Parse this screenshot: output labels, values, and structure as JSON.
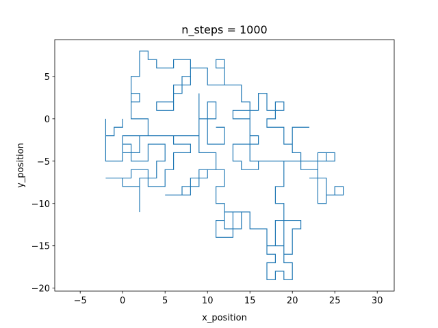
{
  "chart_data": {
    "type": "line",
    "title": "n_steps = 1000",
    "xlabel": "x_position",
    "ylabel": "y_position",
    "color": "#1f77b4",
    "xlim": [
      -8,
      32
    ],
    "ylim": [
      -20.35,
      9.35
    ],
    "xticks": [
      {
        "value": -5,
        "label": "−5"
      },
      0,
      5,
      10,
      15,
      20,
      25,
      30
    ],
    "yticks": [
      {
        "value": -20,
        "label": "−20"
      },
      {
        "value": -15,
        "label": "−15"
      },
      {
        "value": -10,
        "label": "−10"
      },
      {
        "value": -5,
        "label": "−5"
      },
      0,
      5
    ],
    "x": [
      0,
      0,
      -1,
      -1,
      -2,
      -2,
      -2,
      0,
      0,
      1,
      1,
      3,
      3,
      5,
      5,
      4,
      4,
      2,
      2,
      2,
      0,
      0,
      -2,
      1,
      1,
      3,
      3,
      5,
      5,
      6,
      6,
      8,
      8,
      6,
      6,
      9,
      9,
      11,
      11,
      9,
      9,
      7,
      7,
      5,
      8,
      8,
      10,
      10,
      12,
      12,
      11,
      11,
      12,
      12,
      11,
      11,
      13,
      13,
      14,
      14,
      12,
      12,
      15,
      15,
      17,
      17,
      18,
      18,
      21,
      21,
      20,
      20,
      19,
      19,
      17,
      17,
      18,
      18,
      17,
      17,
      18,
      18,
      19,
      19,
      20,
      20,
      19,
      19,
      18,
      18,
      19,
      19,
      16,
      16,
      14,
      14,
      13,
      13,
      16,
      16,
      15,
      15,
      13,
      13,
      16,
      16,
      17,
      17,
      19,
      19,
      18,
      18,
      17,
      17,
      19,
      19,
      20,
      20,
      22,
      20,
      20,
      21,
      21,
      23,
      23,
      22,
      24,
      24,
      25,
      25,
      26,
      26,
      24,
      24,
      23,
      23,
      24,
      24,
      25,
      25,
      24,
      24,
      15,
      15,
      15,
      14,
      14,
      12,
      12,
      11,
      11,
      12,
      12,
      10,
      10,
      8,
      8,
      7,
      7,
      6,
      6,
      4,
      4,
      6,
      6,
      8,
      8,
      6,
      6,
      4,
      4,
      3,
      3,
      2,
      2,
      1,
      1,
      2,
      2,
      1,
      1,
      3,
      3,
      0,
      0,
      2,
      2,
      9,
      9,
      9,
      11,
      11,
      10,
      10,
      12,
      12,
      11
    ],
    "values": [
      0,
      -1,
      -1,
      -2,
      -2,
      0,
      -5,
      -5,
      -3,
      -3,
      -5,
      -5,
      -3,
      -3,
      -5,
      -5,
      -7,
      -7,
      -11,
      -8,
      -8,
      -7,
      -7,
      -7,
      -6,
      -6,
      -8,
      -8,
      -6,
      -6,
      -4,
      -4,
      -3,
      -3,
      -2,
      -2,
      -4,
      -4,
      -6,
      -6,
      -8,
      -8,
      -9,
      -9,
      -9,
      -7,
      -7,
      -6,
      -6,
      -8,
      -8,
      -10,
      -10,
      -12,
      -12,
      -14,
      -14,
      -11,
      -11,
      -13,
      -13,
      -11,
      -11,
      -13,
      -13,
      -15,
      -15,
      -12,
      -12,
      -13,
      -13,
      -16,
      -16,
      -15,
      -15,
      -16,
      -16,
      -17,
      -17,
      -19,
      -19,
      -18,
      -18,
      -19,
      -19,
      -17,
      -17,
      -10,
      -10,
      -8,
      -8,
      -5,
      -5,
      -6,
      -6,
      -5,
      -5,
      -3,
      -3,
      -2,
      -2,
      0,
      0,
      1,
      1,
      3,
      3,
      1,
      1,
      2,
      2,
      0,
      0,
      -1,
      -1,
      -3,
      -3,
      -1,
      -1,
      -1,
      -4,
      -4,
      -6,
      -6,
      -7,
      -7,
      -7,
      -9,
      -9,
      -8,
      -8,
      -9,
      -9,
      -10,
      -10,
      -4,
      -4,
      -5,
      -5,
      -4,
      -4,
      -5,
      -5,
      -2,
      2,
      2,
      4,
      4,
      6,
      6,
      7,
      7,
      4,
      4,
      6,
      6,
      5,
      5,
      3,
      3,
      2,
      2,
      1,
      1,
      4,
      4,
      7,
      7,
      6,
      6,
      7,
      7,
      8,
      8,
      5,
      5,
      2,
      2,
      3,
      3,
      0,
      0,
      -2,
      -2,
      -4,
      -4,
      -2,
      -2,
      3,
      0,
      0,
      2,
      2,
      -3,
      -3,
      -1,
      -1
    ]
  }
}
